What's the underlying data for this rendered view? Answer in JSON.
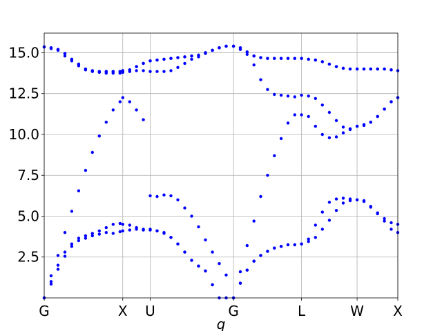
{
  "chart_data": {
    "type": "scatter",
    "title": "",
    "xlabel": "q",
    "ylabel": "",
    "xlim": [
      0,
      1
    ],
    "ylim": [
      0,
      16.2
    ],
    "grid": true,
    "legend": "none",
    "marker_color": "#0000ff",
    "x_ticks": [
      {
        "label": "G",
        "value": 0.0
      },
      {
        "label": "X",
        "value": 0.2222
      },
      {
        "label": "U",
        "value": 0.2998
      },
      {
        "label": "G",
        "value": 0.5354
      },
      {
        "label": "L",
        "value": 0.7278
      },
      {
        "label": "W",
        "value": 0.8849
      },
      {
        "label": "X",
        "value": 1.0
      }
    ],
    "y_ticks": [
      {
        "label": "2.5",
        "value": 2.5
      },
      {
        "label": "5.0",
        "value": 5.0
      },
      {
        "label": "7.5",
        "value": 7.5
      },
      {
        "label": "10.0",
        "value": 10.0
      },
      {
        "label": "12.5",
        "value": 12.5
      },
      {
        "label": "15.0",
        "value": 15.0
      }
    ],
    "x": [
      0.0,
      0.0195,
      0.039,
      0.0585,
      0.0779,
      0.0974,
      0.1169,
      0.1364,
      0.1559,
      0.1754,
      0.1949,
      0.2144,
      0.2222,
      0.2417,
      0.261,
      0.2804,
      0.2998,
      0.3194,
      0.3389,
      0.3584,
      0.378,
      0.3975,
      0.417,
      0.4366,
      0.4561,
      0.4757,
      0.4952,
      0.5147,
      0.5354,
      0.5546,
      0.5739,
      0.5931,
      0.6124,
      0.6316,
      0.6509,
      0.6701,
      0.6894,
      0.7086,
      0.7278,
      0.7475,
      0.7671,
      0.7868,
      0.8064,
      0.8261,
      0.8457,
      0.8653,
      0.8849,
      0.9042,
      0.9235,
      0.9428,
      0.9621,
      0.9814,
      1.0
    ],
    "series": [
      {
        "values": [
          0.0,
          0.85,
          1.75,
          2.55,
          3.15,
          3.5,
          3.65,
          3.8,
          3.9,
          4.0,
          3.95,
          4.05,
          4.1,
          4.15,
          4.2,
          4.15,
          4.15,
          4.1,
          3.95,
          3.7,
          3.3,
          2.8,
          2.3,
          1.95,
          1.65,
          0.8,
          0.0,
          0.0,
          0.0,
          0.9,
          1.7,
          2.25,
          2.6,
          2.85,
          3.05,
          3.15,
          3.25,
          3.25,
          3.3,
          3.45,
          3.7,
          4.2,
          4.75,
          5.35,
          5.8,
          5.95,
          6.0,
          5.95,
          5.6,
          5.15,
          4.7,
          4.2,
          4.0
        ]
      },
      {
        "values": [
          0.0,
          1.0,
          2.0,
          2.8,
          3.3,
          3.65,
          3.8,
          3.95,
          4.1,
          4.3,
          4.5,
          4.55,
          4.5,
          4.45,
          4.3,
          4.2,
          4.2,
          4.1,
          4.0,
          3.7,
          3.3,
          2.8,
          2.3,
          1.95,
          1.65,
          0.8,
          0.0,
          0.0,
          0.0,
          0.9,
          1.7,
          2.25,
          2.6,
          2.85,
          3.05,
          3.15,
          3.25,
          3.25,
          3.3,
          3.6,
          4.45,
          5.25,
          5.85,
          6.05,
          6.1,
          6.05,
          6.0,
          5.9,
          5.55,
          5.2,
          4.85,
          4.6,
          4.5
        ]
      },
      {
        "values": [
          0.0,
          1.35,
          2.6,
          4.0,
          5.3,
          6.55,
          7.8,
          8.9,
          9.9,
          10.75,
          11.5,
          12.0,
          12.25,
          12.0,
          11.5,
          10.9,
          6.25,
          6.2,
          6.3,
          6.25,
          6.0,
          5.5,
          5.0,
          4.35,
          3.55,
          2.8,
          2.1,
          1.4,
          0.0,
          1.6,
          3.2,
          4.7,
          6.2,
          7.5,
          8.7,
          9.75,
          10.7,
          11.2,
          11.2,
          11.1,
          10.5,
          10.0,
          9.8,
          9.85,
          10.1,
          10.35,
          10.5,
          10.55,
          10.75,
          11.1,
          11.55,
          12.0,
          12.25
        ]
      },
      {
        "values": [
          15.35,
          15.3,
          15.2,
          14.95,
          14.6,
          14.3,
          14.0,
          13.9,
          13.85,
          13.85,
          13.85,
          13.85,
          13.9,
          13.95,
          14.15,
          14.35,
          14.5,
          14.55,
          14.6,
          14.65,
          14.7,
          14.75,
          14.8,
          14.85,
          15.0,
          15.15,
          15.3,
          15.4,
          15.4,
          15.3,
          15.05,
          14.8,
          14.7,
          14.65,
          14.65,
          14.65,
          14.65,
          14.65,
          14.65,
          14.6,
          14.55,
          14.45,
          14.3,
          14.15,
          14.05,
          14.0,
          14.0,
          14.0,
          14.0,
          14.0,
          14.0,
          13.95,
          13.9
        ]
      },
      {
        "values": [
          15.35,
          15.25,
          15.15,
          14.8,
          14.5,
          14.2,
          13.95,
          13.85,
          13.8,
          13.75,
          13.75,
          13.75,
          13.8,
          13.85,
          13.9,
          13.9,
          13.85,
          13.85,
          13.85,
          13.9,
          14.1,
          14.35,
          14.6,
          14.75,
          14.95,
          15.15,
          15.3,
          15.4,
          15.4,
          15.2,
          14.9,
          14.25,
          13.35,
          12.75,
          12.45,
          12.4,
          12.35,
          12.3,
          12.4,
          12.35,
          12.2,
          11.8,
          11.35,
          10.85,
          10.45,
          10.3,
          10.5,
          10.6,
          10.75,
          11.1,
          11.55,
          12.0,
          12.25
        ]
      },
      {
        "values": [
          15.35,
          15.3,
          15.2,
          14.95,
          14.6,
          14.3,
          14.0,
          13.9,
          13.85,
          13.85,
          13.85,
          13.85,
          13.9,
          13.95,
          14.15,
          14.35,
          14.5,
          14.55,
          14.6,
          14.65,
          14.7,
          14.75,
          14.8,
          14.85,
          15.0,
          15.15,
          15.3,
          15.4,
          15.4,
          15.3,
          15.05,
          14.8,
          14.7,
          14.65,
          14.65,
          14.65,
          14.65,
          14.65,
          14.65,
          14.6,
          14.55,
          14.45,
          14.3,
          14.15,
          14.05,
          14.0,
          14.0,
          14.0,
          14.0,
          14.0,
          14.0,
          13.95,
          13.9
        ]
      }
    ]
  }
}
